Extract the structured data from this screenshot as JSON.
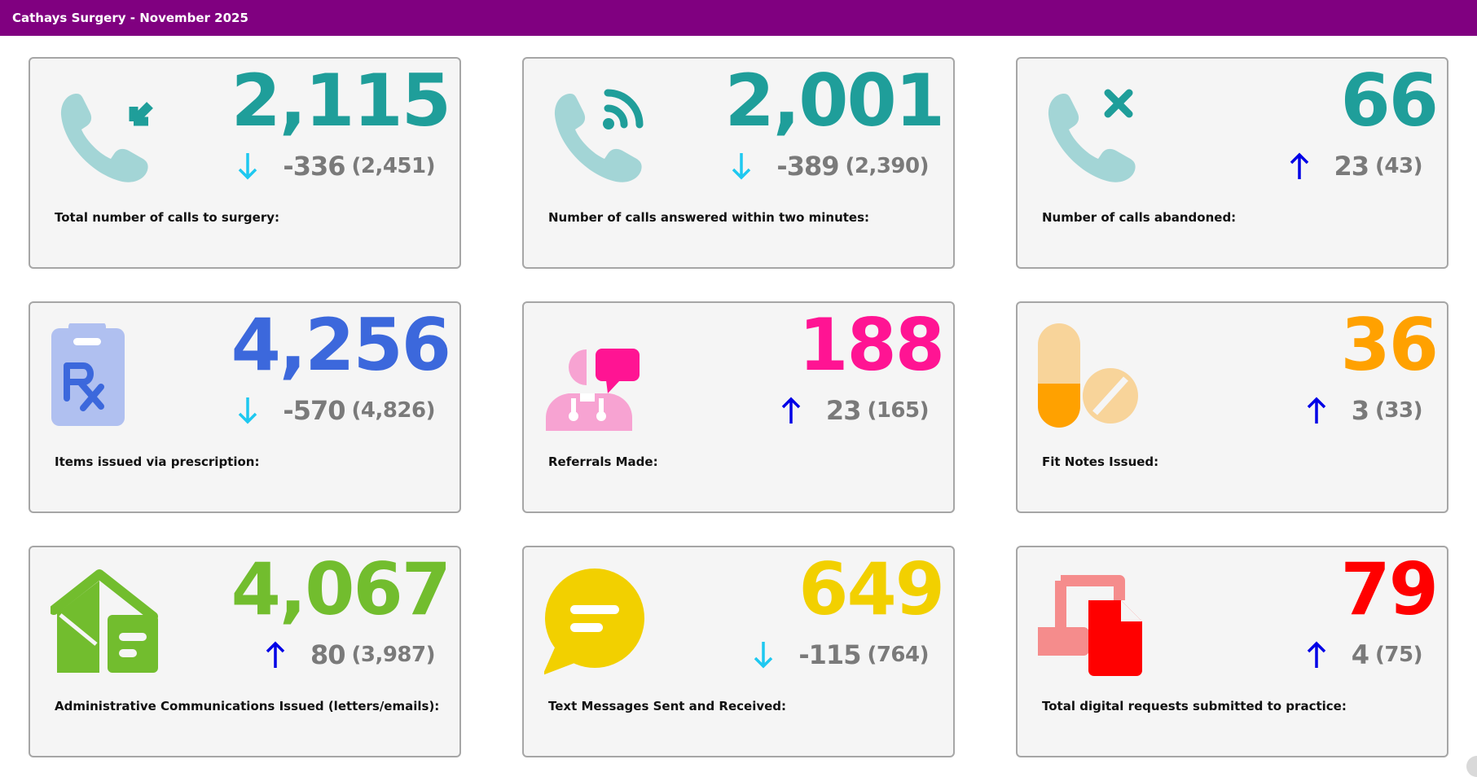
{
  "header": {
    "title": "Cathays Surgery - November 2025"
  },
  "colors": {
    "header_bg": "#800080",
    "teal": "#1f9e9a",
    "blue": "#3c68dc",
    "pink": "#ff1493",
    "orange": "#ffa100",
    "green": "#72bd2e",
    "yellow": "#f2d000",
    "red": "#ff0000",
    "arrow_down": "#1ec8f0",
    "arrow_up": "#0000e6",
    "delta_text": "#7a7a7a"
  },
  "cards": [
    {
      "label": "Total number of calls to surgery:",
      "value": "2,115",
      "delta": "-336",
      "previous": "(2,451)",
      "direction": "down",
      "icon": "phone-incoming-icon",
      "color": "#1f9e9a"
    },
    {
      "label": "Number of calls answered within two minutes:",
      "value": "2,001",
      "delta": "-389",
      "previous": "(2,390)",
      "direction": "down",
      "icon": "phone-answered-icon",
      "color": "#1f9e9a"
    },
    {
      "label": "Number of calls abandoned:",
      "value": "66",
      "delta": "23",
      "previous": "(43)",
      "direction": "up",
      "icon": "phone-abandoned-icon",
      "color": "#1f9e9a"
    },
    {
      "label": "Items issued via prescription:",
      "value": "4,256",
      "delta": "-570",
      "previous": "(4,826)",
      "direction": "down",
      "icon": "prescription-icon",
      "color": "#3c68dc"
    },
    {
      "label": "Referrals Made:",
      "value": "188",
      "delta": "23",
      "previous": "(165)",
      "direction": "up",
      "icon": "doctor-referral-icon",
      "color": "#ff1493"
    },
    {
      "label": "Fit Notes Issued:",
      "value": "36",
      "delta": "3",
      "previous": "(33)",
      "direction": "up",
      "icon": "pills-icon",
      "color": "#ffa100"
    },
    {
      "label": "Administrative Communications Issued (letters/emails):",
      "value": "4,067",
      "delta": "80",
      "previous": "(3,987)",
      "direction": "up",
      "icon": "mail-house-icon",
      "color": "#72bd2e"
    },
    {
      "label": "Text Messages Sent and Received:",
      "value": "649",
      "delta": "-115",
      "previous": "(764)",
      "direction": "down",
      "icon": "chat-bubble-icon",
      "color": "#f2d000"
    },
    {
      "label": "Total digital requests submitted to practice:",
      "value": "79",
      "delta": "4",
      "previous": "(75)",
      "direction": "up",
      "icon": "digital-document-icon",
      "color": "#ff0000"
    }
  ]
}
